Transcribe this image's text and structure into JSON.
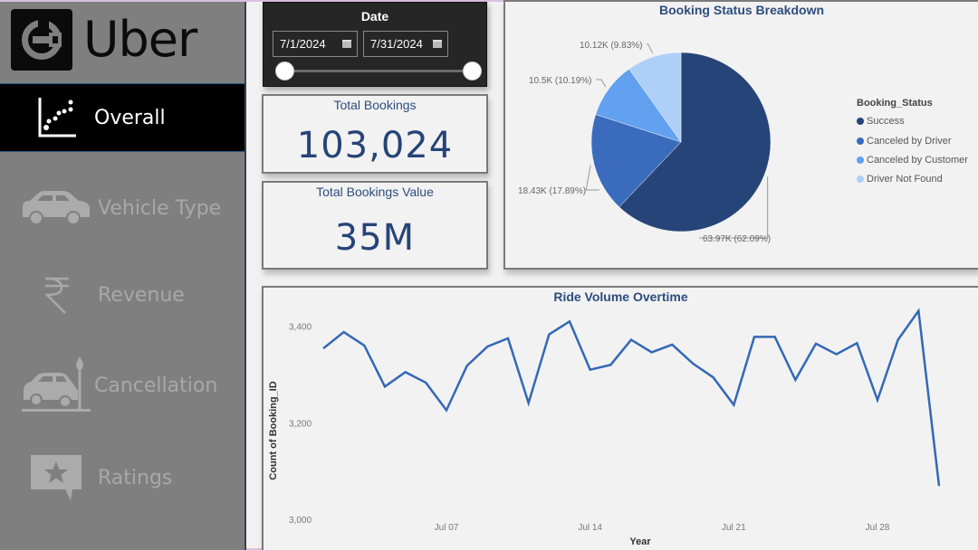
{
  "sidebar": {
    "logo_text": "Uber",
    "items": [
      {
        "label": "Overall",
        "icon": "scatter-chart-icon",
        "active": true
      },
      {
        "label": "Vehicle Type",
        "icon": "car-icon",
        "active": false
      },
      {
        "label": "Revenue",
        "icon": "rupee-icon",
        "active": false
      },
      {
        "label": "Cancellation",
        "icon": "car-crash-icon",
        "active": false
      },
      {
        "label": "Ratings",
        "icon": "star-review-icon",
        "active": false
      }
    ]
  },
  "date_filter": {
    "title": "Date",
    "start": "7/1/2024",
    "end": "7/31/2024",
    "range_fraction": [
      0,
      1
    ]
  },
  "kpis": [
    {
      "title": "Total Bookings",
      "value": "103,024"
    },
    {
      "title": "Total Bookings Value",
      "value": "35M"
    }
  ],
  "colors": {
    "success": "#264478",
    "canceled_by_driver": "#3a6bbd",
    "canceled_by_customer": "#62a0f0",
    "driver_not_found": "#aed0f8",
    "line": "#3468b5",
    "title": "#2c4d7e"
  },
  "chart_data": [
    {
      "type": "pie",
      "title": "Booking Status Breakdown",
      "legend_title": "Booking_Status",
      "legend_position": "right",
      "categories": [
        "Success",
        "Canceled by Driver",
        "Canceled by Customer",
        "Driver Not Found"
      ],
      "values": [
        63970,
        18430,
        10500,
        10120
      ],
      "labels": [
        "63.97K (62.09%)",
        "18.43K (17.89%)",
        "10.5K (10.19%)",
        "10.12K (9.83%)"
      ],
      "percents": [
        62.09,
        17.89,
        10.19,
        9.83
      ]
    },
    {
      "type": "line",
      "title": "Ride Volume Overtime",
      "xlabel": "Year",
      "ylabel": "Count of Booking_ID",
      "ylim": [
        3000,
        3450
      ],
      "yticks": [
        3000,
        3200,
        3400
      ],
      "ytick_labels": [
        "3,000",
        "3,200",
        "3,400"
      ],
      "xtick_labels": [
        "Jul 07",
        "Jul 14",
        "Jul 21",
        "Jul 28"
      ],
      "xtick_days": [
        7,
        14,
        21,
        28
      ],
      "x": [
        1,
        2,
        3,
        4,
        5,
        6,
        7,
        8,
        9,
        10,
        11,
        12,
        13,
        14,
        15,
        16,
        17,
        18,
        19,
        20,
        21,
        22,
        23,
        24,
        25,
        26,
        27,
        28,
        29,
        30,
        31
      ],
      "series": [
        {
          "name": "Count of Booking_ID",
          "values": [
            3354,
            3388,
            3360,
            3275,
            3305,
            3283,
            3226,
            3318,
            3358,
            3375,
            3241,
            3383,
            3410,
            3310,
            3320,
            3372,
            3346,
            3362,
            3323,
            3294,
            3237,
            3378,
            3378,
            3289,
            3364,
            3342,
            3365,
            3247,
            3372,
            3432,
            3069
          ]
        }
      ]
    }
  ]
}
